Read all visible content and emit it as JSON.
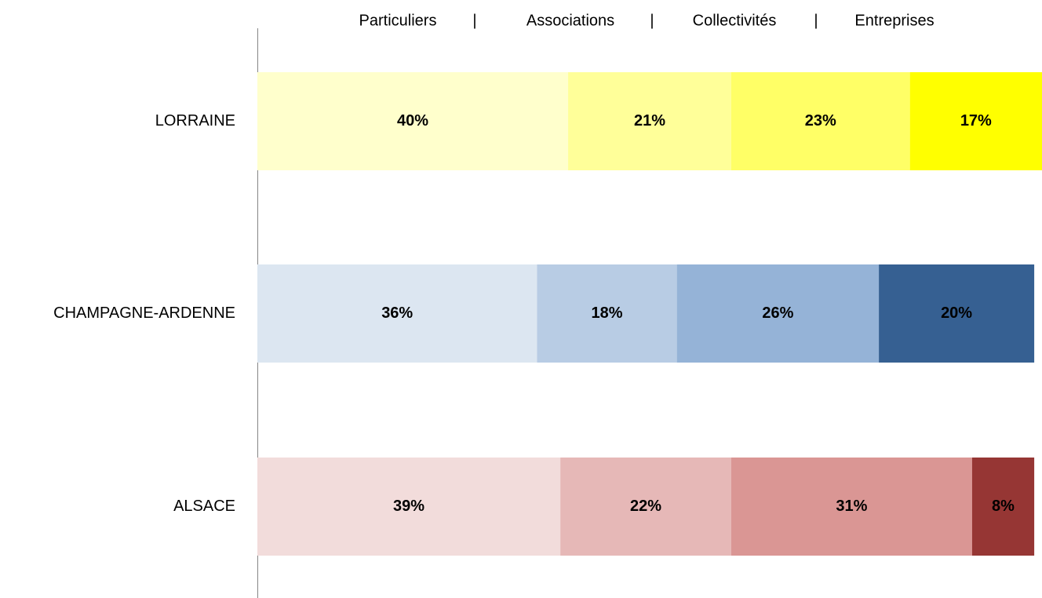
{
  "chart_data": {
    "type": "stacked-bar-horizontal",
    "categories": [
      "LORRAINE",
      "CHAMPAGNE-ARDENNE",
      "ALSACE"
    ],
    "legend_separator": "|",
    "xlim": [
      0,
      101
    ],
    "series": [
      {
        "name": "Particuliers",
        "colors": [
          "#FFFFCC",
          "#DCE6F1",
          "#F2DCDB"
        ],
        "values": [
          40,
          36,
          39
        ],
        "value_labels": [
          "40%",
          "36%",
          "39%"
        ]
      },
      {
        "name": "Associations",
        "colors": [
          "#FFFF99",
          "#B8CCE4",
          "#E6B8B7"
        ],
        "values": [
          21,
          18,
          22
        ],
        "value_labels": [
          "21%",
          "18%",
          "22%"
        ]
      },
      {
        "name": "Collectivités",
        "colors": [
          "#FFFF66",
          "#95B3D7",
          "#DA9694"
        ],
        "values": [
          23,
          26,
          31
        ],
        "value_labels": [
          "23%",
          "26%",
          "31%"
        ]
      },
      {
        "name": "Entreprises",
        "colors": [
          "#FFFF00",
          "#366092",
          "#963634"
        ],
        "values": [
          17,
          20,
          8
        ],
        "value_labels": [
          "17%",
          "20%",
          "8%"
        ]
      }
    ]
  }
}
